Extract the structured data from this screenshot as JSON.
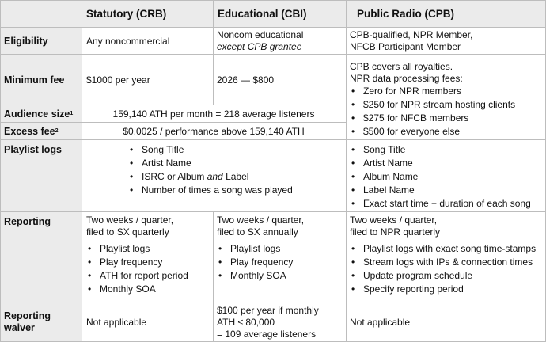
{
  "headers": {
    "crb": "Statutory (CRB)",
    "cbi": "Educational (CBI)",
    "cpb": "Public Radio (CPB)"
  },
  "rows": {
    "eligibility": {
      "label": "Eligibility",
      "crb": "Any noncommercial",
      "cbi_line1": "Noncom educational",
      "cbi_line2": "except CPB grantee",
      "cpb_line1": "CPB-qualified, NPR Member,",
      "cpb_line2": "NFCB Participant Member"
    },
    "minimum_fee": {
      "label": "Minimum fee",
      "crb": "$1000 per year",
      "cbi": "2026 — $800"
    },
    "cpb_fees": {
      "line1": "CPB covers all royalties.",
      "line2": "NPR data processing fees:",
      "items": [
        "Zero for NPR members",
        "$250 for NPR stream hosting clients",
        "$275 for NFCB members",
        "$500 for everyone else"
      ]
    },
    "audience_size": {
      "label": "Audience size",
      "footnote": "1",
      "value": "159,140 ATH per month = 218 average listeners"
    },
    "excess_fee": {
      "label": "Excess fee",
      "footnote": "2",
      "value": "$0.0025 / performance above 159,140 ATH"
    },
    "playlist_logs": {
      "label": "Playlist logs",
      "crb_cbi_items": [
        "Song Title",
        "Artist Name",
        "ISRC or Album",
        "and",
        "Label",
        "Number of times a song was played"
      ],
      "cpb_items": [
        "Song Title",
        "Artist Name",
        "Album Name",
        "Label Name",
        "Exact start time + duration of each song"
      ]
    },
    "reporting": {
      "label": "Reporting",
      "crb_line1": "Two weeks / quarter,",
      "crb_line2": "filed to SX quarterly",
      "crb_items": [
        "Playlist logs",
        "Play frequency",
        "ATH for report period",
        "Monthly SOA"
      ],
      "cbi_line1": "Two weeks / quarter,",
      "cbi_line2": "filed to SX annually",
      "cbi_items": [
        "Playlist logs",
        "Play frequency",
        "Monthly SOA"
      ],
      "cpb_line1": "Two weeks / quarter,",
      "cpb_line2": "filed to NPR quarterly",
      "cpb_items": [
        "Playlist logs with exact song time-stamps",
        "Stream logs with IPs & connection times",
        "Update program schedule",
        "Specify reporting period"
      ]
    },
    "reporting_waiver": {
      "label_line1": "Reporting",
      "label_line2": "waiver",
      "crb": "Not applicable",
      "cbi_line1": "$100 per year if monthly",
      "cbi_line2": "ATH ≤ 80,000",
      "cbi_line3": "= 109 average listeners",
      "cpb": "Not applicable"
    }
  }
}
